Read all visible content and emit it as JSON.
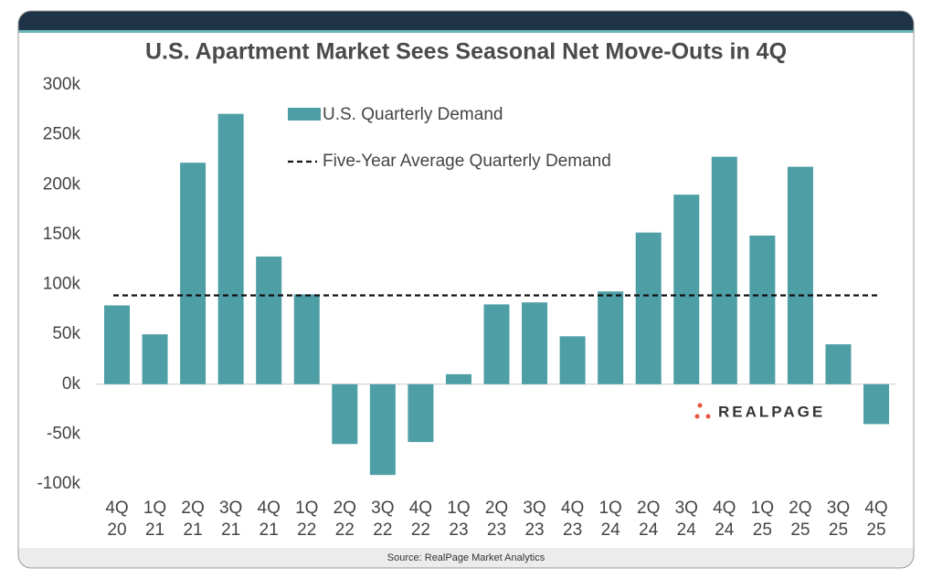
{
  "chart_data": {
    "type": "bar",
    "title": "U.S. Apartment Market Sees Seasonal Net Move-Outs in 4Q",
    "categories": [
      "4Q 20",
      "1Q 21",
      "2Q 21",
      "3Q 21",
      "4Q 21",
      "1Q 22",
      "2Q 22",
      "3Q 22",
      "4Q 22",
      "1Q 23",
      "2Q 23",
      "3Q 23",
      "4Q 23",
      "1Q 24",
      "2Q 24",
      "3Q 24",
      "4Q 24",
      "1Q 25",
      "2Q 25",
      "3Q 25",
      "4Q 25"
    ],
    "series": [
      {
        "name": "U.S. Quarterly Demand",
        "color": "#4e9ea6",
        "values": [
          79000,
          50000,
          222000,
          271000,
          128000,
          90000,
          -60000,
          -91000,
          -58000,
          10000,
          80000,
          82000,
          48000,
          93000,
          152000,
          190000,
          228000,
          149000,
          218000,
          40000,
          -40000
        ]
      }
    ],
    "reference_line": {
      "name": "Five-Year Average Quarterly Demand",
      "value": 89000,
      "color": "#111111",
      "style": "dashed"
    },
    "ylim": [
      -100000,
      300000
    ],
    "yticks": [
      {
        "value": -100000,
        "label": "-100k"
      },
      {
        "value": -50000,
        "label": "-50k"
      },
      {
        "value": 0,
        "label": "0k"
      },
      {
        "value": 50000,
        "label": "50k"
      },
      {
        "value": 100000,
        "label": "100k"
      },
      {
        "value": 150000,
        "label": "150k"
      },
      {
        "value": 200000,
        "label": "200k"
      },
      {
        "value": 250000,
        "label": "250k"
      },
      {
        "value": 300000,
        "label": "300k"
      }
    ],
    "grid": false,
    "logo": "REALPAGE",
    "source": "Source: RealPage Market Analytics"
  }
}
